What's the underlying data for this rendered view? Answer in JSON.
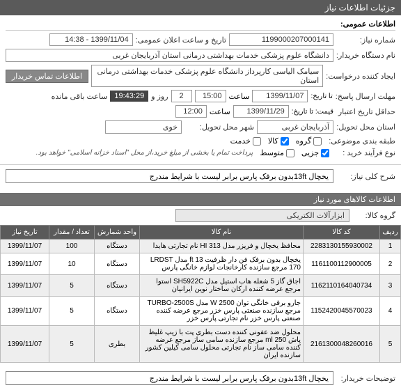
{
  "header": {
    "title": "جزئیات اطلاعات نیاز"
  },
  "general": {
    "section_title": "اطلاعات عمومی:",
    "need_no_label": "شماره نیاز:",
    "need_no": "1199000207000141",
    "announce_label": "تاریخ و ساعت اعلان عمومی:",
    "announce_value": "1399/11/04 - 14:38",
    "buyer_label": "نام دستگاه خریدار:",
    "buyer_value": "دانشگاه علوم پزشکی خدمات بهداشتی درمانی استان آذربایجان غربی",
    "creator_label": "ایجاد کننده درخواست:",
    "creator_value": "سیامک الیاسی کارپرداز دانشگاه علوم پزشکی خدمات بهداشتی درمانی استان",
    "contact_btn": "اطلاعات تماس خریدار",
    "deadline_label": "مهلت ارسال پاسخ:",
    "deadline_to_label": "تا تاریخ:",
    "deadline_date": "1399/11/07",
    "deadline_time_label": "ساعت",
    "deadline_time": "15:00",
    "remaining_days": "2",
    "remaining_day_label": "روز و",
    "remaining_time": "19:43:29",
    "remaining_label": "ساعت باقی مانده",
    "min_validity_label": "حداقل تاریخ اعتبار",
    "min_validity_sub": "قیمت: تا تاریخ:",
    "validity_date": "1399/11/29",
    "validity_time_label": "ساعت",
    "validity_time": "12:00",
    "delivery_label": "استان محل تحویل:",
    "province": "آذربایجان غربی",
    "city_label": "شهر محل تحویل:",
    "city": "خوی",
    "budget_label": "طبقه بندی موضوعی:",
    "cb_group": "گروه",
    "cb_goods": "کالا",
    "cb_service": "خدمت",
    "purchase_type_label": "نوع فرآیند خرید :",
    "cb_minor": "جزیی",
    "cb_medium": "متوسط",
    "note": "پرداخت تمام یا بخشی از مبلغ خرید،از محل \"اسناد خزانه اسلامی\" خواهد بود."
  },
  "summary": {
    "label": "شرح کلی نیاز:",
    "value": "یخچال 13ftبدون برفک پارس برابر لیست با شرایط مندرج"
  },
  "items": {
    "section_title": "اطلاعات کالاهای مورد نیاز",
    "group_label": "گروه کالا:",
    "group_value": "ابزارآلات الکتریکی",
    "columns": {
      "row": "ردیف",
      "code": "کد کالا",
      "name": "نام کالا",
      "unit": "واحد شمارش",
      "qty": "تعداد / مقدار",
      "date": "تاریخ نیاز"
    },
    "rows": [
      {
        "n": "1",
        "code": "2283130155930002",
        "name": "محافظ یخچال و فریزر مدل HI 313 نام تجارتی هایدا",
        "unit": "دستگاه",
        "qty": "100",
        "date": "1399/11/07"
      },
      {
        "n": "2",
        "code": "1161100112900005",
        "name": "یخچال بدون برفک فن دار ظرفیت ft 13 مدل LRDST 170 مرجع سازنده کارخانجات لوازم خانگی پارس",
        "unit": "دستگاه",
        "qty": "10",
        "date": "1399/11/07"
      },
      {
        "n": "3",
        "code": "1162110164040734",
        "name": "اجاق گاز 5 شعله هاب استیل مدل SH5922C استوا مرجع عرضه کننده ارکان ساختار نوین ایرانیان",
        "unit": "دستگاه",
        "qty": "5",
        "date": "1399/11/07"
      },
      {
        "n": "4",
        "code": "1152420045570023",
        "name": "جارو برقی خانگی توان W 2500 مدل TURBO-2500S مرجع سازنده صنعتی پارس خزر مرجع عرضه کننده صنعتی پارس خزر نام تجارتی پارس خزر",
        "unit": "دستگاه",
        "qty": "5",
        "date": "1399/11/07"
      },
      {
        "n": "5",
        "code": "2161300048260016",
        "name": "محلول ضد عفونی کننده دست بطری پت با زیپ غلیظ پاش ml 250 مرجع سازنده سامی ساز مرجع عرضه کننده سامی ساز نام تجارتی محلول سامی کیلین کشور سازنده ایران",
        "unit": "بطری",
        "qty": "5",
        "date": "1399/11/07"
      }
    ]
  },
  "buyer_notes": {
    "label": "توضیحات خریدار:",
    "value": "یخچال 13ftبدون برفک پارس برابر لیست با شرایط مندرج"
  }
}
